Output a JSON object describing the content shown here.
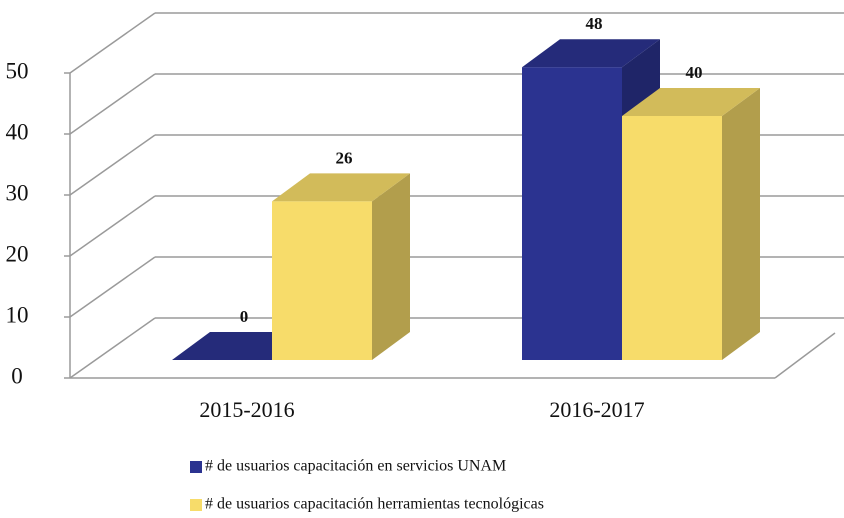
{
  "chart_data": {
    "type": "bar3d",
    "categories": [
      "2015-2016",
      "2016-2017"
    ],
    "series": [
      {
        "name": "# de usuarios capacitación en servicios UNAM",
        "color": "#2b3390",
        "values": [
          0,
          48
        ]
      },
      {
        "name": "# de usuarios capacitación herramientas tecnológicas",
        "color": "#f7dc6a",
        "values": [
          26,
          40
        ]
      }
    ],
    "ylim": [
      0,
      50
    ],
    "yticks": [
      0,
      10,
      20,
      30,
      40,
      50
    ],
    "grid": true
  }
}
